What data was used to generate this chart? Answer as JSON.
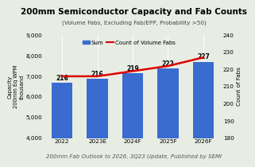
{
  "title": "200mm Semiconductor Capacity and Fab Counts",
  "subtitle": "(Volume Fabs, Excluding Fab/EPP, Probability >50)",
  "footer": "200mm Fab Outlook to 2026, 3Q23 Update, Published by SEMI",
  "ylabel_left": "Capacity\n200mm Eq WPM\nthousand",
  "ylabel_right": "Count of Fabs",
  "categories": [
    "2022",
    "2023E",
    "2024F",
    "2025F",
    "2026F"
  ],
  "bar_values": [
    6680,
    6880,
    7150,
    7380,
    7700
  ],
  "line_values": [
    216,
    216,
    219,
    222,
    227
  ],
  "bar_color": "#3a6bcf",
  "line_color": "#dd0000",
  "ylim_left": [
    4000,
    9000
  ],
  "ylim_right": [
    180,
    240
  ],
  "yticks_left": [
    4000,
    5000,
    6000,
    7000,
    8000,
    9000
  ],
  "yticks_right": [
    180,
    190,
    200,
    210,
    220,
    230,
    240
  ],
  "background_color": "#e8ede4",
  "legend_labels": [
    "Sum",
    "Count of Volume Fabs"
  ],
  "title_fontsize": 7.5,
  "subtitle_fontsize": 5.2,
  "footer_fontsize": 5.0,
  "label_fontsize": 5.5,
  "tick_fontsize": 5.2,
  "ylabel_fontsize": 4.8,
  "ylabel_right_fontsize": 5.2
}
